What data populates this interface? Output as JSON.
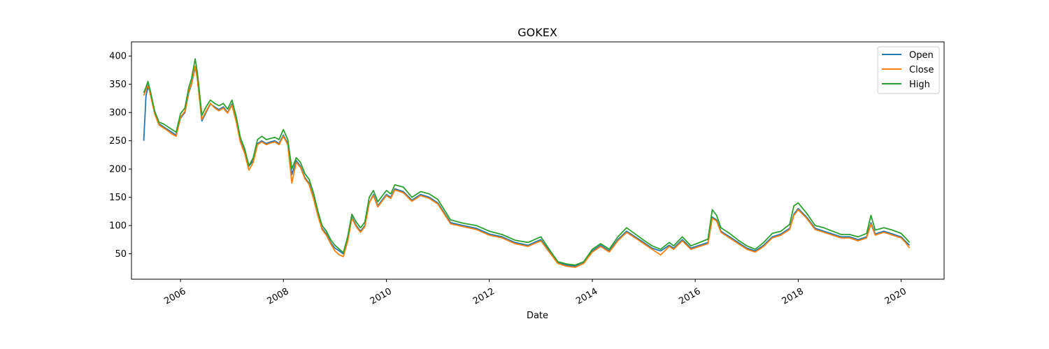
{
  "chart_data": {
    "type": "line",
    "title": "GOKEX",
    "xlabel": "Date",
    "ylabel": "",
    "xlim": [
      "2005-01-18",
      "2020-11-01"
    ],
    "ylim": [
      5,
      425
    ],
    "xticks": [
      {
        "label": "2006",
        "date": "2006-01-01"
      },
      {
        "label": "2008",
        "date": "2008-01-01"
      },
      {
        "label": "2010",
        "date": "2010-01-01"
      },
      {
        "label": "2012",
        "date": "2012-01-01"
      },
      {
        "label": "2014",
        "date": "2014-01-01"
      },
      {
        "label": "2016",
        "date": "2016-01-01"
      },
      {
        "label": "2018",
        "date": "2018-01-01"
      },
      {
        "label": "2020",
        "date": "2020-01-01"
      }
    ],
    "yticks": [
      50,
      100,
      150,
      200,
      250,
      300,
      350,
      400
    ],
    "legend": "top-right",
    "colors": {
      "Open": "#1f77b4",
      "Close": "#ff7f0e",
      "High": "#2ca02c"
    },
    "x": [
      "2005-04-15",
      "2005-05-01",
      "2005-05-15",
      "2005-06-01",
      "2005-07-01",
      "2005-08-01",
      "2005-09-01",
      "2005-10-01",
      "2005-11-01",
      "2005-12-01",
      "2006-01-01",
      "2006-02-01",
      "2006-03-01",
      "2006-03-20",
      "2006-04-15",
      "2006-05-01",
      "2006-06-01",
      "2006-07-01",
      "2006-08-01",
      "2006-09-01",
      "2006-10-01",
      "2006-11-01",
      "2006-12-01",
      "2007-01-01",
      "2007-02-01",
      "2007-03-01",
      "2007-04-01",
      "2007-05-01",
      "2007-06-01",
      "2007-07-01",
      "2007-08-01",
      "2007-09-01",
      "2007-10-01",
      "2007-11-01",
      "2007-12-01",
      "2008-01-01",
      "2008-02-01",
      "2008-03-01",
      "2008-04-01",
      "2008-05-01",
      "2008-06-01",
      "2008-07-01",
      "2008-08-01",
      "2008-09-01",
      "2008-10-01",
      "2008-11-01",
      "2008-12-01",
      "2009-01-01",
      "2009-02-01",
      "2009-03-01",
      "2009-04-01",
      "2009-05-01",
      "2009-06-01",
      "2009-07-01",
      "2009-08-01",
      "2009-09-01",
      "2009-10-01",
      "2009-11-01",
      "2009-12-01",
      "2010-01-01",
      "2010-02-01",
      "2010-03-01",
      "2010-05-01",
      "2010-07-01",
      "2010-09-01",
      "2010-11-01",
      "2011-01-01",
      "2011-04-01",
      "2011-07-01",
      "2011-10-01",
      "2012-01-01",
      "2012-04-01",
      "2012-07-01",
      "2012-10-01",
      "2013-01-01",
      "2013-03-01",
      "2013-05-01",
      "2013-07-01",
      "2013-09-01",
      "2013-11-01",
      "2014-01-01",
      "2014-03-01",
      "2014-05-01",
      "2014-07-01",
      "2014-09-01",
      "2014-11-01",
      "2015-01-01",
      "2015-03-01",
      "2015-05-01",
      "2015-07-01",
      "2015-08-01",
      "2015-10-01",
      "2015-12-01",
      "2016-02-01",
      "2016-04-01",
      "2016-05-01",
      "2016-06-01",
      "2016-07-01",
      "2016-09-01",
      "2016-11-01",
      "2017-01-01",
      "2017-03-01",
      "2017-05-01",
      "2017-07-01",
      "2017-09-01",
      "2017-10-01",
      "2017-11-01",
      "2017-12-01",
      "2018-01-01",
      "2018-03-01",
      "2018-05-01",
      "2018-07-01",
      "2018-09-01",
      "2018-11-01",
      "2019-01-01",
      "2019-03-01",
      "2019-05-01",
      "2019-06-01",
      "2019-07-01",
      "2019-09-01",
      "2019-11-01",
      "2020-01-01",
      "2020-02-01",
      "2020-03-01"
    ],
    "series": [
      {
        "name": "Open",
        "values": [
          250,
          330,
          345,
          335,
          300,
          280,
          275,
          270,
          265,
          260,
          290,
          300,
          335,
          350,
          380,
          360,
          285,
          300,
          315,
          310,
          305,
          310,
          300,
          315,
          285,
          250,
          230,
          205,
          215,
          245,
          250,
          245,
          248,
          250,
          245,
          260,
          245,
          190,
          215,
          205,
          185,
          175,
          150,
          120,
          95,
          85,
          70,
          60,
          55,
          50,
          75,
          115,
          100,
          90,
          100,
          140,
          155,
          135,
          145,
          155,
          150,
          165,
          160,
          145,
          155,
          150,
          140,
          105,
          100,
          95,
          85,
          80,
          70,
          65,
          75,
          55,
          35,
          30,
          28,
          35,
          55,
          65,
          55,
          75,
          90,
          80,
          70,
          60,
          55,
          65,
          60,
          75,
          60,
          65,
          70,
          115,
          110,
          90,
          80,
          70,
          60,
          55,
          65,
          80,
          85,
          90,
          95,
          120,
          130,
          115,
          95,
          90,
          85,
          80,
          80,
          75,
          80,
          105,
          85,
          90,
          85,
          80,
          72,
          65
        ]
      },
      {
        "name": "Close",
        "values": [
          330,
          340,
          350,
          332,
          298,
          278,
          273,
          268,
          262,
          258,
          292,
          302,
          337,
          352,
          382,
          358,
          288,
          302,
          316,
          308,
          303,
          308,
          299,
          313,
          283,
          248,
          228,
          198,
          212,
          243,
          248,
          243,
          246,
          248,
          243,
          258,
          243,
          175,
          212,
          203,
          183,
          173,
          148,
          118,
          93,
          83,
          68,
          55,
          48,
          45,
          72,
          113,
          98,
          88,
          98,
          140,
          153,
          133,
          143,
          153,
          148,
          163,
          158,
          143,
          153,
          148,
          138,
          103,
          98,
          93,
          83,
          78,
          68,
          63,
          73,
          53,
          33,
          28,
          26,
          33,
          53,
          63,
          53,
          73,
          88,
          78,
          68,
          58,
          48,
          63,
          58,
          73,
          58,
          63,
          68,
          113,
          108,
          88,
          78,
          68,
          58,
          53,
          63,
          78,
          83,
          88,
          93,
          118,
          128,
          113,
          93,
          88,
          83,
          78,
          78,
          73,
          78,
          103,
          83,
          88,
          83,
          78,
          70,
          60
        ]
      },
      {
        "name": "High",
        "values": [
          335,
          345,
          355,
          338,
          303,
          283,
          280,
          275,
          270,
          265,
          298,
          308,
          345,
          360,
          395,
          370,
          295,
          310,
          322,
          316,
          312,
          316,
          306,
          322,
          292,
          256,
          236,
          206,
          220,
          252,
          258,
          252,
          254,
          256,
          252,
          270,
          252,
          200,
          220,
          212,
          192,
          182,
          158,
          126,
          100,
          90,
          75,
          65,
          58,
          52,
          80,
          120,
          106,
          96,
          106,
          150,
          162,
          142,
          152,
          162,
          156,
          172,
          168,
          150,
          160,
          156,
          146,
          110,
          104,
          100,
          90,
          84,
          74,
          70,
          80,
          58,
          36,
          32,
          30,
          36,
          58,
          68,
          58,
          80,
          96,
          85,
          74,
          64,
          58,
          70,
          64,
          80,
          64,
          70,
          76,
          128,
          118,
          96,
          86,
          74,
          64,
          58,
          70,
          86,
          90,
          96,
          102,
          135,
          140,
          122,
          100,
          96,
          90,
          84,
          84,
          80,
          86,
          118,
          92,
          96,
          92,
          86,
          78,
          70
        ]
      }
    ]
  }
}
